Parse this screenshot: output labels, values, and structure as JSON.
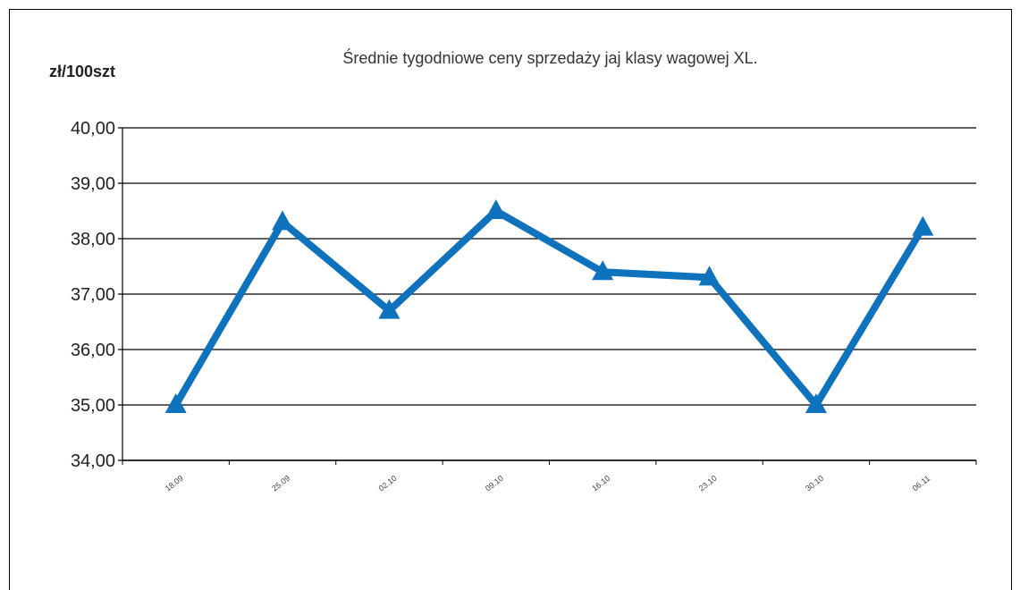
{
  "chart_data": {
    "type": "line",
    "title": "Średnie  tygodniowe  ceny  sprzedaży  jaj  klasy  wagowej  XL.",
    "ylabel": "zł/100szt",
    "xlabel": "",
    "categories": [
      "18.09",
      "25.09",
      "02.10",
      "09.10",
      "16.10",
      "23.10",
      "30.10",
      "06.11"
    ],
    "series": [
      {
        "values": [
          35.0,
          38.3,
          36.7,
          38.5,
          37.4,
          37.3,
          35.0,
          38.2
        ]
      }
    ],
    "ylim": [
      34.0,
      40.0
    ],
    "yticks": [
      "34,00",
      "35,00",
      "36,00",
      "37,00",
      "38,00",
      "39,00",
      "40,00"
    ],
    "grid": true,
    "legend": "none",
    "colors": {
      "series": "#0e72bc",
      "grid": "#000000",
      "text": "#222222"
    },
    "marker": "triangle"
  }
}
